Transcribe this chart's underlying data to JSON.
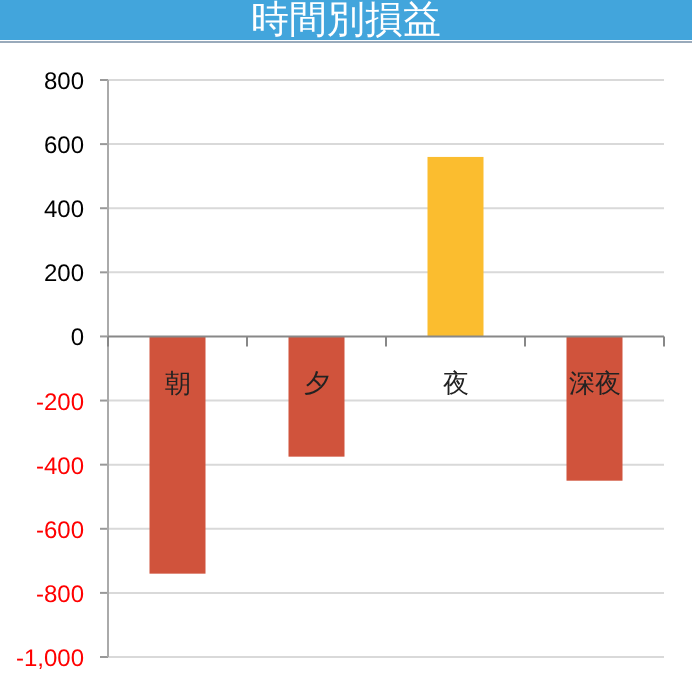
{
  "chart_data": {
    "type": "bar",
    "title": "時間別損益",
    "categories": [
      "朝",
      "夕",
      "夜",
      "深夜"
    ],
    "values": [
      -740,
      -375,
      560,
      -450
    ],
    "colors": [
      "#d0533c",
      "#d0533c",
      "#fbbd2f",
      "#d0533c"
    ],
    "ylim": [
      -1000,
      800
    ],
    "yticks": [
      {
        "value": -1000,
        "label": "-1,000"
      },
      -800,
      -600,
      -400,
      -200,
      0,
      200,
      400,
      600,
      800
    ],
    "grid": "y"
  }
}
